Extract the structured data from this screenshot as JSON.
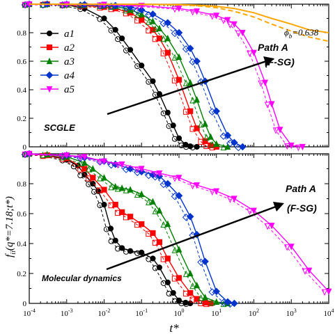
{
  "chart_data": [
    {
      "type": "line",
      "panel": "top",
      "xscale": "log",
      "xlim": [
        0.0001,
        10000
      ],
      "ylim": [
        0,
        1
      ],
      "yticks": [
        "0",
        "0.2",
        "0.4",
        "0.6",
        "0.8",
        "1"
      ],
      "annotations": {
        "phi_label": "ϕ",
        "phi_sub": "b",
        "phi_value": "=0.638",
        "path_line1": "Path A",
        "path_line2": "(F-SG)",
        "method": "SCGLE"
      },
      "legend_position": "top-left",
      "series": [
        {
          "name": "a1",
          "color": "#000000",
          "marker": "circle",
          "x": [
            0.0001,
            0.0003,
            0.001,
            0.003,
            0.01,
            0.02,
            0.03,
            0.05,
            0.1,
            0.2,
            0.3,
            0.5,
            0.7,
            1,
            1.5,
            2,
            3
          ],
          "y": [
            1.0,
            1.0,
            0.995,
            0.97,
            0.9,
            0.82,
            0.76,
            0.68,
            0.57,
            0.46,
            0.37,
            0.24,
            0.15,
            0.06,
            0.015,
            0.004,
            0.0
          ]
        },
        {
          "name": "a2",
          "color": "#ff0000",
          "marker": "square",
          "x": [
            0.0001,
            0.0003,
            0.001,
            0.003,
            0.01,
            0.02,
            0.05,
            0.1,
            0.2,
            0.3,
            0.5,
            1,
            2,
            3,
            5,
            7,
            10
          ],
          "y": [
            1.0,
            1.0,
            0.997,
            0.99,
            0.98,
            0.97,
            0.94,
            0.89,
            0.82,
            0.76,
            0.66,
            0.47,
            0.25,
            0.13,
            0.04,
            0.01,
            0.0
          ]
        },
        {
          "name": "a3",
          "color": "#008000",
          "marker": "triangle-up",
          "x": [
            0.0001,
            0.0003,
            0.001,
            0.003,
            0.01,
            0.02,
            0.05,
            0.1,
            0.2,
            0.3,
            0.5,
            1,
            2,
            3,
            5,
            7,
            10,
            20
          ],
          "y": [
            1.0,
            1.0,
            0.998,
            0.995,
            0.99,
            0.985,
            0.96,
            0.93,
            0.88,
            0.83,
            0.76,
            0.63,
            0.45,
            0.33,
            0.16,
            0.07,
            0.02,
            0.0
          ]
        },
        {
          "name": "a4",
          "color": "#0033cc",
          "marker": "diamond",
          "x": [
            0.0001,
            0.0003,
            0.001,
            0.003,
            0.01,
            0.02,
            0.05,
            0.1,
            0.2,
            0.5,
            1,
            2,
            3,
            5,
            10,
            20,
            30,
            50
          ],
          "y": [
            1.0,
            1.0,
            0.999,
            0.997,
            0.993,
            0.99,
            0.98,
            0.96,
            0.93,
            0.87,
            0.8,
            0.69,
            0.6,
            0.46,
            0.25,
            0.08,
            0.03,
            0.0
          ]
        },
        {
          "name": "a5",
          "color": "#ff00ff",
          "marker": "triangle-down",
          "x": [
            0.0001,
            0.001,
            0.01,
            0.1,
            1,
            3,
            10,
            20,
            30,
            50,
            100,
            200,
            300,
            500,
            1000,
            2000
          ],
          "y": [
            1.0,
            0.999,
            0.997,
            0.99,
            0.97,
            0.95,
            0.92,
            0.89,
            0.86,
            0.8,
            0.66,
            0.45,
            0.3,
            0.12,
            0.01,
            0.0
          ]
        },
        {
          "name": "",
          "color": "#ffa500",
          "style": "solid",
          "x": [
            0.0001,
            0.1,
            1,
            3,
            10,
            30,
            100,
            300,
            1000,
            3000,
            10000
          ],
          "y": [
            1.0,
            0.999,
            0.997,
            0.993,
            0.985,
            0.97,
            0.94,
            0.9,
            0.86,
            0.82,
            0.8
          ]
        },
        {
          "name": "",
          "color": "#ffa500",
          "style": "dashed",
          "x": [
            0.0001,
            0.1,
            1,
            3,
            10,
            30,
            100,
            300,
            1000,
            3000,
            10000
          ],
          "y": [
            1.0,
            0.999,
            0.995,
            0.99,
            0.975,
            0.95,
            0.91,
            0.86,
            0.81,
            0.77,
            0.74
          ]
        }
      ]
    },
    {
      "type": "line",
      "panel": "bottom",
      "xscale": "log",
      "xlim": [
        0.0001,
        10000
      ],
      "ylim": [
        0,
        1
      ],
      "ylabel": "f_ii(q*=7.18;t*)",
      "xlabel": "t*",
      "yticks": [
        "0",
        "0.2",
        "0.4",
        "0.6",
        "0.8",
        "1"
      ],
      "xticks": [
        "10-4",
        "10-3",
        "10-2",
        "10-1",
        "100",
        "101",
        "102",
        "103",
        "104"
      ],
      "annotations": {
        "path_line1": "Path A",
        "path_line2": "(F-SG)",
        "method": "Molecular dynamics"
      },
      "series": [
        {
          "name": "a1",
          "color": "#000000",
          "marker": "circle",
          "x": [
            0.0001,
            0.0003,
            0.001,
            0.002,
            0.003,
            0.005,
            0.007,
            0.01,
            0.015,
            0.02,
            0.03,
            0.05,
            0.1,
            0.2,
            0.3,
            0.5,
            0.7,
            1,
            1.5,
            2
          ],
          "y": [
            1.0,
            0.99,
            0.96,
            0.92,
            0.86,
            0.8,
            0.75,
            0.66,
            0.5,
            0.42,
            0.37,
            0.35,
            0.34,
            0.3,
            0.24,
            0.14,
            0.07,
            0.02,
            0.005,
            0.0
          ]
        },
        {
          "name": "a2",
          "color": "#ff0000",
          "marker": "square",
          "x": [
            0.0001,
            0.0003,
            0.001,
            0.003,
            0.005,
            0.01,
            0.02,
            0.03,
            0.05,
            0.1,
            0.2,
            0.3,
            0.5,
            1,
            2,
            3,
            5,
            7
          ],
          "y": [
            1.0,
            0.99,
            0.97,
            0.9,
            0.84,
            0.76,
            0.66,
            0.61,
            0.58,
            0.53,
            0.47,
            0.41,
            0.3,
            0.17,
            0.07,
            0.03,
            0.005,
            0.0
          ]
        },
        {
          "name": "a3",
          "color": "#008000",
          "marker": "triangle-up",
          "x": [
            0.0001,
            0.0003,
            0.001,
            0.003,
            0.005,
            0.01,
            0.02,
            0.03,
            0.05,
            0.1,
            0.2,
            0.3,
            0.5,
            1,
            2,
            3,
            5,
            10,
            20
          ],
          "y": [
            1.0,
            0.995,
            0.98,
            0.94,
            0.9,
            0.84,
            0.78,
            0.77,
            0.76,
            0.73,
            0.68,
            0.62,
            0.53,
            0.36,
            0.2,
            0.12,
            0.04,
            0.01,
            0.0
          ]
        },
        {
          "name": "a4",
          "color": "#0033cc",
          "marker": "diamond",
          "x": [
            0.0001,
            0.001,
            0.003,
            0.01,
            0.02,
            0.05,
            0.1,
            0.2,
            0.3,
            0.5,
            1,
            2,
            3,
            5,
            10,
            20,
            30
          ],
          "y": [
            1.0,
            0.99,
            0.975,
            0.95,
            0.93,
            0.9,
            0.88,
            0.86,
            0.85,
            0.8,
            0.72,
            0.58,
            0.46,
            0.28,
            0.08,
            0.01,
            0.0
          ]
        },
        {
          "name": "a5",
          "color": "#ff00ff",
          "marker": "triangle-down",
          "x": [
            0.0001,
            0.001,
            0.003,
            0.01,
            0.03,
            0.1,
            0.3,
            1,
            3,
            10,
            30,
            100,
            300,
            1000,
            3000,
            10000
          ],
          "y": [
            1.0,
            0.99,
            0.98,
            0.95,
            0.93,
            0.9,
            0.87,
            0.84,
            0.79,
            0.75,
            0.7,
            0.62,
            0.52,
            0.38,
            0.22,
            0.08
          ]
        }
      ]
    }
  ]
}
